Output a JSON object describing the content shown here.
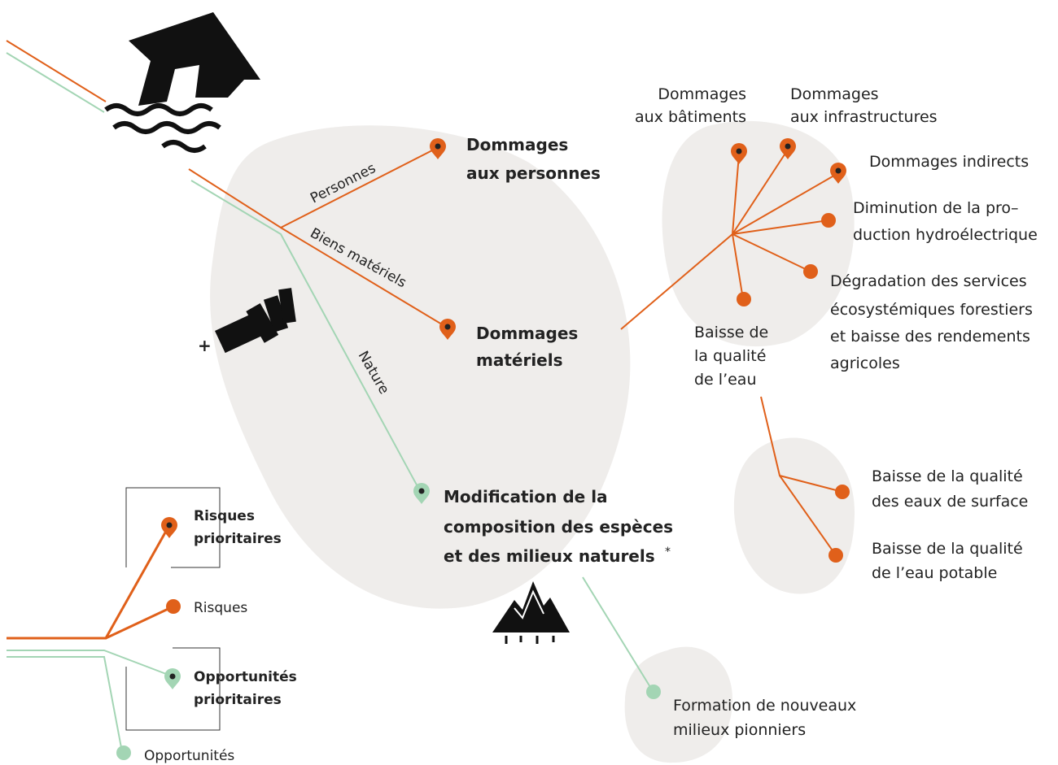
{
  "branches": {
    "personnes": "Personnes",
    "biens": "Biens matériels",
    "nature": "Nature",
    "plus": "+"
  },
  "main": [
    {
      "lines": [
        "Dommages",
        "aux personnes"
      ]
    },
    {
      "lines": [
        "Dommages",
        "matériels"
      ]
    },
    {
      "lines": [
        "Modification de la",
        "composition des espèces",
        "et des milieux naturels"
      ],
      "footnote": "*"
    }
  ],
  "material_effects": [
    {
      "lines": [
        "Dommages",
        "aux bâtiments"
      ]
    },
    {
      "lines": [
        "Dommages",
        "aux infrastructures"
      ]
    },
    {
      "lines": [
        "Dommages indirects"
      ]
    },
    {
      "lines": [
        "Diminution de la pro–",
        "duction hydroélectrique"
      ]
    },
    {
      "lines": [
        "Dégradation des services",
        "écosystémiques forestiers",
        "et baisse des rendements",
        "agricoles"
      ]
    },
    {
      "lines": [
        "Baisse de",
        "la qualité",
        "de l’eau"
      ]
    }
  ],
  "water_effects": [
    {
      "lines": [
        "Baisse de la qualité",
        "des eaux de surface"
      ]
    },
    {
      "lines": [
        "Baisse de la qualité",
        "de l’eau potable"
      ]
    }
  ],
  "nature_effects": [
    {
      "lines": [
        "Formation de nouveaux",
        "milieux pionniers"
      ]
    }
  ],
  "legend": [
    {
      "lines": [
        "Risques",
        "prioritaires"
      ]
    },
    {
      "lines": [
        "Risques"
      ]
    },
    {
      "lines": [
        "Opportunités",
        "prioritaires"
      ]
    },
    {
      "lines": [
        "Opportunités"
      ]
    }
  ]
}
